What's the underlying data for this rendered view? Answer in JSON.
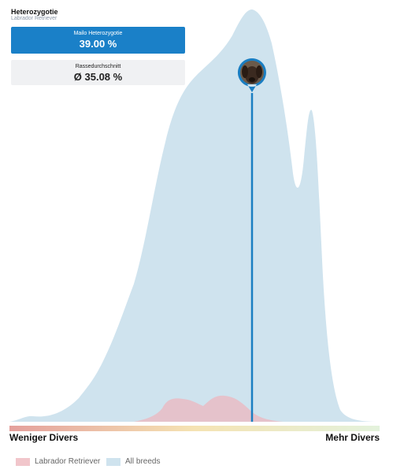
{
  "header": {
    "title": "Heterozygotie",
    "subtitle": "Labrador Retriever"
  },
  "cards": [
    {
      "label": "Mailo Heterozygotie",
      "value": "39.00 %"
    },
    {
      "label": "Rassedurchschnitt",
      "value": "Ø 35.08 %"
    }
  ],
  "scale": {
    "left": "Weniger Divers",
    "right": "Mehr Divers"
  },
  "legend": [
    "Labrador Retriever",
    "All breeds"
  ]
}
